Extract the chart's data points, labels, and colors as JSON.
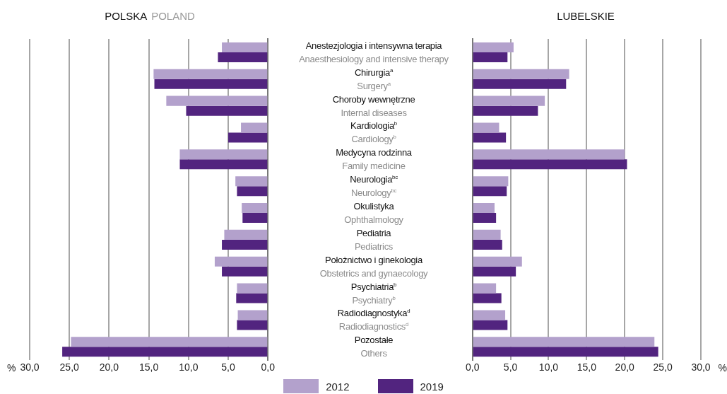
{
  "chart_data": [
    {
      "type": "bar",
      "orientation": "horizontal",
      "title": "POLSKA",
      "subtitle": "POLAND",
      "xlabel": "%",
      "categories": [
        "Anestezjologia i intensywna terapia\nAnaesthesiology and intensive therapy",
        "Chirurgia$^{a}$\nSurgery$^{a}$",
        "Choroby wewnętrzne\nInternal diseases",
        "Kardiologia$^{b}$\nCardiology$^{b}$",
        "Medycyna rodzinna\nFamily medicine",
        "Neurologia$^{bc}$\nNeurology$^{bc}$",
        "Okulistyka\nOphthalmology",
        "Pediatria\nPediatrics",
        "Położnictwo i ginekologia\nObstetrics and gynaecology",
        "Psychiatria$^{b}$\nPsychiatry$^{b}$",
        "Radiodiagnostyka$^{d}$\nRadiodiagnostics$^{d}$",
        "Pozostałe\nOthers"
      ],
      "series": [
        {
          "name": "2012",
          "color": "#b3a1cc",
          "values": [
            5.8,
            14.4,
            12.8,
            3.4,
            11.1,
            4.1,
            3.3,
            5.5,
            6.7,
            3.9,
            3.8,
            24.8
          ]
        },
        {
          "name": "2019",
          "color": "#52247f",
          "values": [
            6.3,
            14.3,
            10.3,
            5.0,
            11.1,
            3.9,
            3.2,
            5.8,
            5.8,
            4.0,
            3.9,
            25.9
          ]
        }
      ],
      "xlim": [
        30,
        0
      ],
      "xticks": [
        {
          "value": 30,
          "label": "30,0"
        },
        {
          "value": 25,
          "label": "25,0"
        },
        {
          "value": 20,
          "label": "20,0"
        },
        {
          "value": 15,
          "label": "15,0"
        },
        {
          "value": 10,
          "label": "10,0"
        },
        {
          "value": 5,
          "label": "5,0"
        },
        {
          "value": 0,
          "label": "0,0"
        }
      ],
      "grid": "x",
      "legend": "bottom"
    },
    {
      "type": "bar",
      "orientation": "horizontal",
      "title": "LUBELSKIE",
      "xlabel": "%",
      "tick_labels": "x",
      "series": [
        {
          "name": "2012",
          "color": "#b3a1cc",
          "values": [
            5.4,
            12.7,
            9.5,
            3.5,
            20.0,
            4.7,
            2.9,
            3.7,
            6.5,
            3.1,
            4.3,
            23.9
          ]
        },
        {
          "name": "2019",
          "color": "#52247f",
          "values": [
            4.6,
            12.3,
            8.6,
            4.4,
            20.3,
            4.5,
            3.1,
            3.9,
            5.7,
            3.8,
            4.6,
            24.4
          ]
        }
      ],
      "xlim": [
        0,
        30
      ],
      "xticks": [
        {
          "value": 0,
          "label": "0,0"
        },
        {
          "value": 5,
          "label": "5,0"
        },
        {
          "value": 10,
          "label": "10,0"
        },
        {
          "value": 15,
          "label": "15,0"
        },
        {
          "value": 20,
          "label": "20,0"
        },
        {
          "value": 25,
          "label": "25,0"
        },
        {
          "value": 30,
          "label": "30,0"
        }
      ],
      "grid": "x"
    }
  ]
}
